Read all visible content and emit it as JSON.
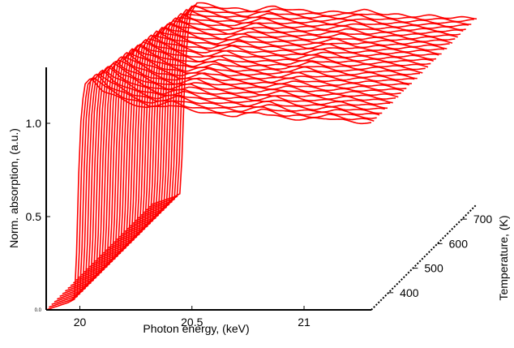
{
  "chart_data": {
    "type": "line",
    "subtype": "3d-waterfall",
    "title": "",
    "xlabel": "Photon energy, (keV)",
    "ylabel": "Norm. absorption, (a.u.)",
    "zlabel": "Temperature, (K)",
    "x_ticks": [
      20,
      20.5,
      21
    ],
    "x_tick_labels": [
      "20",
      "20.5",
      "21"
    ],
    "y_ticks": [
      0,
      0.5,
      1
    ],
    "y_tick_labels": [
      "0.0",
      "0.5",
      "1.0"
    ],
    "z_ticks": [
      400,
      500,
      600,
      700
    ],
    "z_tick_labels": [
      "400",
      "500",
      "600",
      "700"
    ],
    "xlim": [
      19.85,
      21.3
    ],
    "ylim": [
      0,
      1.3
    ],
    "zlim": [
      330,
      760
    ],
    "grid": false,
    "legend": "none",
    "series_color": "#ff0000",
    "series": [
      {
        "temperature": 350,
        "x": [
          19.85,
          19.9,
          19.95,
          19.98,
          20.0,
          20.02,
          20.05,
          20.1,
          20.2,
          20.3,
          20.4,
          20.5,
          20.6,
          20.7,
          20.8,
          20.9,
          21.0,
          21.1,
          21.2,
          21.3
        ],
        "y": [
          0.0,
          0.02,
          0.04,
          0.06,
          0.95,
          1.2,
          1.24,
          1.18,
          1.12,
          1.08,
          1.1,
          1.07,
          1.05,
          1.04,
          1.06,
          1.03,
          1.02,
          1.03,
          1.01,
          1.0
        ]
      },
      {
        "temperature": 450,
        "x": [
          19.85,
          19.9,
          19.95,
          19.98,
          20.0,
          20.02,
          20.05,
          20.1,
          20.2,
          20.3,
          20.4,
          20.5,
          20.6,
          20.7,
          20.8,
          20.9,
          21.0,
          21.1,
          21.2,
          21.3
        ],
        "y": [
          0.0,
          0.02,
          0.04,
          0.06,
          0.9,
          1.15,
          1.2,
          1.16,
          1.1,
          1.07,
          1.09,
          1.06,
          1.05,
          1.04,
          1.05,
          1.03,
          1.02,
          1.02,
          1.01,
          1.0
        ]
      },
      {
        "temperature": 550,
        "x": [
          19.85,
          19.9,
          19.95,
          19.98,
          20.0,
          20.02,
          20.05,
          20.1,
          20.2,
          20.3,
          20.4,
          20.5,
          20.6,
          20.7,
          20.8,
          20.9,
          21.0,
          21.1,
          21.2,
          21.3
        ],
        "y": [
          0.0,
          0.02,
          0.04,
          0.06,
          0.85,
          1.1,
          1.16,
          1.13,
          1.09,
          1.06,
          1.08,
          1.05,
          1.04,
          1.03,
          1.05,
          1.03,
          1.02,
          1.02,
          1.01,
          1.0
        ]
      },
      {
        "temperature": 650,
        "x": [
          19.85,
          19.9,
          19.95,
          19.98,
          20.0,
          20.02,
          20.05,
          20.1,
          20.2,
          20.3,
          20.4,
          20.5,
          20.6,
          20.7,
          20.8,
          20.9,
          21.0,
          21.1,
          21.2,
          21.3
        ],
        "y": [
          0.0,
          0.02,
          0.04,
          0.06,
          0.8,
          1.06,
          1.12,
          1.1,
          1.07,
          1.05,
          1.07,
          1.05,
          1.04,
          1.03,
          1.04,
          1.02,
          1.02,
          1.01,
          1.01,
          1.0
        ]
      },
      {
        "temperature": 750,
        "x": [
          19.85,
          19.9,
          19.95,
          19.98,
          20.0,
          20.02,
          20.05,
          20.1,
          20.2,
          20.3,
          20.4,
          20.5,
          20.6,
          20.7,
          20.8,
          20.9,
          21.0,
          21.1,
          21.2,
          21.3
        ],
        "y": [
          0.0,
          0.02,
          0.04,
          0.06,
          0.76,
          1.02,
          1.08,
          1.07,
          1.05,
          1.04,
          1.06,
          1.04,
          1.03,
          1.03,
          1.04,
          1.02,
          1.01,
          1.01,
          1.0,
          1.0
        ]
      }
    ]
  }
}
